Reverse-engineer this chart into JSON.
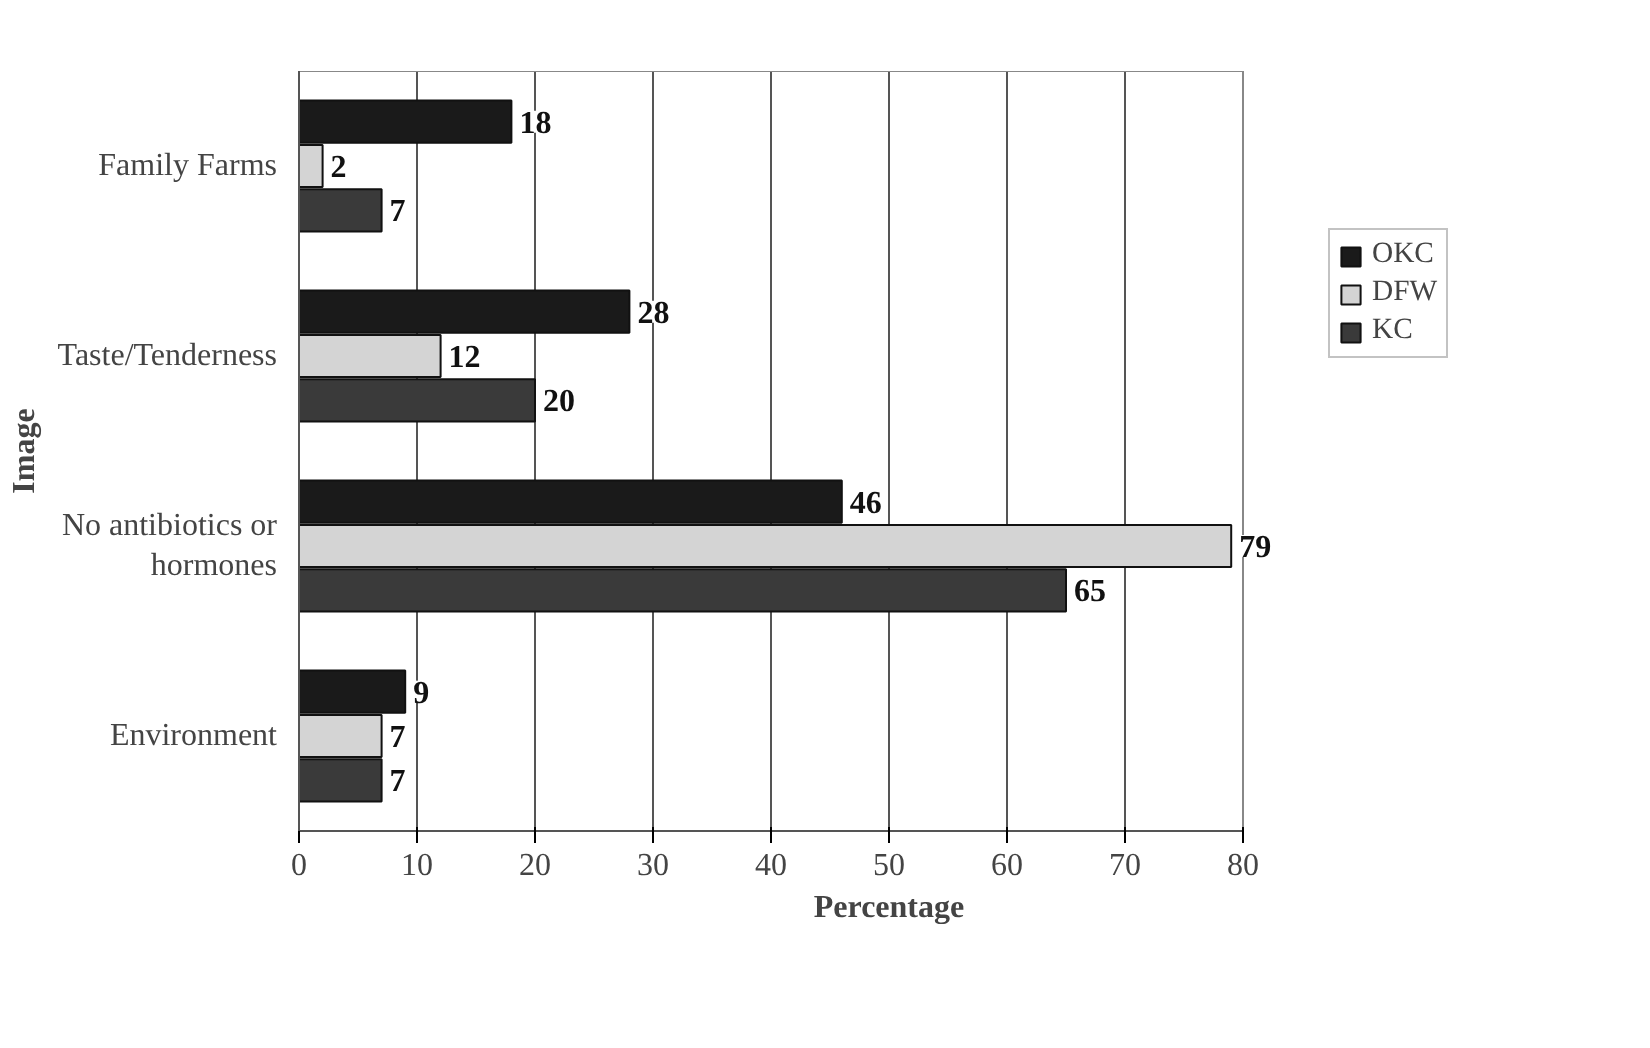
{
  "chart_data": {
    "type": "bar",
    "orientation": "horizontal",
    "xlabel": "Percentage",
    "ylabel": "Image",
    "categories": [
      "Family Farms",
      "Taste/Tenderness",
      "No antibiotics or hormones",
      "Environment"
    ],
    "series": [
      {
        "name": "OKC",
        "color": "#1a1a1a",
        "values": [
          18,
          28,
          46,
          9
        ]
      },
      {
        "name": "DFW",
        "color": "#d4d4d4",
        "values": [
          2,
          12,
          79,
          7
        ]
      },
      {
        "name": "KC",
        "color": "#3a3a3a",
        "values": [
          7,
          20,
          65,
          7
        ]
      }
    ],
    "xlim": [
      0,
      80
    ],
    "xticks": [
      0,
      10,
      20,
      30,
      40,
      50,
      60,
      70,
      80
    ],
    "grid": "x",
    "legend": "right",
    "data_labels": true
  }
}
